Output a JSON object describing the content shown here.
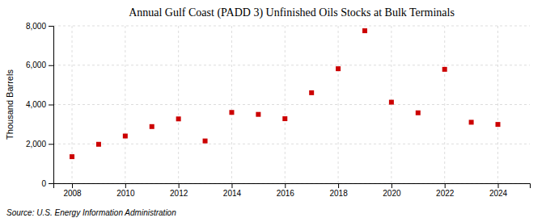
{
  "chart_data": {
    "type": "scatter",
    "title": "Annual Gulf Coast (PADD 3) Unfinished Oils Stocks at Bulk Terminals",
    "ylabel": "Thousand Barrels",
    "annotations": [
      "Source: U.S. Energy Information Administration"
    ],
    "x": [
      2008,
      2009,
      2010,
      2011,
      2012,
      2013,
      2014,
      2015,
      2016,
      2017,
      2018,
      2019,
      2020,
      2021,
      2022,
      2023,
      2024
    ],
    "values": [
      1350,
      1980,
      2400,
      2880,
      3270,
      2150,
      3600,
      3500,
      3280,
      4600,
      5820,
      7750,
      4120,
      3580,
      5790,
      3100,
      2990
    ],
    "color": "#cc0000",
    "marker": "square",
    "xlim": [
      2007.3,
      2025.2
    ],
    "xticks": [
      2008,
      2010,
      2012,
      2014,
      2016,
      2018,
      2020,
      2022,
      2024
    ],
    "ylim": [
      0,
      8000
    ],
    "yticks": [
      0,
      {
        "value": 2000,
        "label": "2,000"
      },
      {
        "value": 4000,
        "label": "4,000"
      },
      {
        "value": 6000,
        "label": "6,000"
      },
      {
        "value": 8000,
        "label": "8,000"
      }
    ],
    "grid": true
  }
}
